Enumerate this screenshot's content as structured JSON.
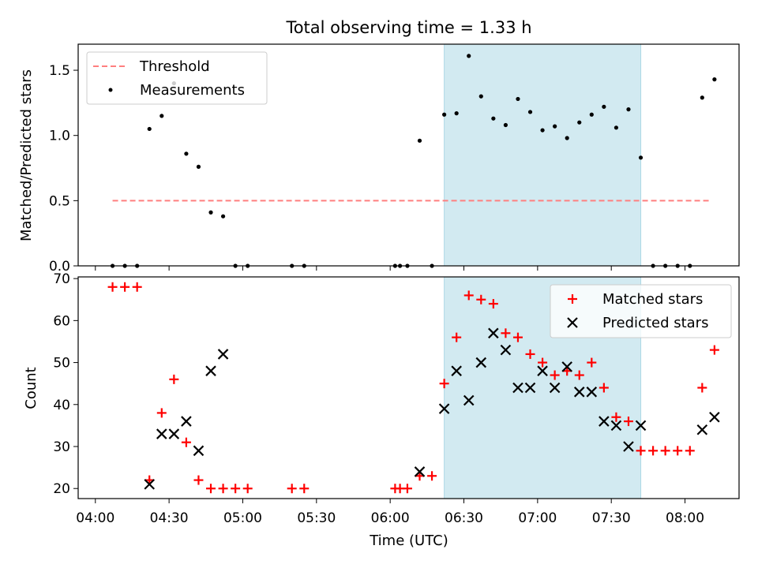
{
  "colors": {
    "highlight": "#add8e6",
    "threshold": "#ff7f7f",
    "measurements": "#000000",
    "matched": "#ff0000",
    "predicted": "#000000"
  },
  "chart_data": [
    {
      "type": "scatter",
      "title": "Total observing time = 1.33 h",
      "xlabel": "",
      "ylabel": "Matched/Predicted stars",
      "xlim": [
        "03:53",
        "08:22"
      ],
      "ylim": [
        0,
        1.7
      ],
      "yticks": [
        "0.0",
        "0.5",
        "1.0",
        "1.5"
      ],
      "highlight_span": [
        "06:22",
        "07:42"
      ],
      "legend": "top-left",
      "threshold": {
        "name": "Threshold",
        "x": [
          "04:07",
          "08:10"
        ],
        "y": 0.5
      },
      "series": [
        {
          "name": "Measurements",
          "x": [
            "04:07",
            "04:12",
            "04:17",
            "04:22",
            "04:27",
            "04:32",
            "04:37",
            "04:42",
            "04:47",
            "04:52",
            "04:57",
            "05:02",
            "05:20",
            "05:25",
            "06:02",
            "06:04",
            "06:07",
            "06:12",
            "06:17",
            "06:22",
            "06:27",
            "06:32",
            "06:37",
            "06:42",
            "06:47",
            "06:52",
            "06:57",
            "07:02",
            "07:07",
            "07:12",
            "07:17",
            "07:22",
            "07:27",
            "07:32",
            "07:37",
            "07:42",
            "07:47",
            "07:52",
            "07:57",
            "08:02",
            "08:07",
            "08:12"
          ],
          "y": [
            0,
            0,
            0,
            1.05,
            1.15,
            1.4,
            0.86,
            0.76,
            0.41,
            0.38,
            0,
            0,
            0,
            0,
            0,
            0,
            0,
            0.96,
            0,
            1.16,
            1.17,
            1.61,
            1.3,
            1.13,
            1.08,
            1.28,
            1.18,
            1.04,
            1.07,
            0.98,
            1.1,
            1.16,
            1.22,
            1.06,
            1.2,
            0.83,
            0,
            0,
            0,
            0,
            1.29,
            1.43
          ]
        }
      ]
    },
    {
      "type": "scatter",
      "title": "",
      "xlabel": "Time (UTC)",
      "ylabel": "Count",
      "xlim": [
        "03:53",
        "08:22"
      ],
      "ylim": [
        17.6,
        70.4
      ],
      "yticks": [
        "20",
        "30",
        "40",
        "50",
        "60",
        "70"
      ],
      "xticks": [
        "04:00",
        "04:30",
        "05:00",
        "05:30",
        "06:00",
        "06:30",
        "07:00",
        "07:30",
        "08:00"
      ],
      "highlight_span": [
        "06:22",
        "07:42"
      ],
      "legend": "top-right",
      "series": [
        {
          "name": "Matched stars",
          "x": [
            "04:07",
            "04:12",
            "04:17",
            "04:22",
            "04:27",
            "04:32",
            "04:37",
            "04:42",
            "04:47",
            "04:52",
            "04:57",
            "05:02",
            "05:20",
            "05:25",
            "06:02",
            "06:04",
            "06:07",
            "06:12",
            "06:17",
            "06:22",
            "06:27",
            "06:32",
            "06:37",
            "06:42",
            "06:47",
            "06:52",
            "06:57",
            "07:02",
            "07:07",
            "07:12",
            "07:17",
            "07:22",
            "07:27",
            "07:32",
            "07:37",
            "07:42",
            "07:47",
            "07:52",
            "07:57",
            "08:02",
            "08:07",
            "08:12"
          ],
          "y": [
            68,
            68,
            68,
            22,
            38,
            46,
            31,
            22,
            20,
            20,
            20,
            20,
            20,
            20,
            20,
            20,
            20,
            23,
            23,
            45,
            56,
            66,
            65,
            64,
            57,
            56,
            52,
            50,
            47,
            48,
            47,
            50,
            44,
            37,
            36,
            29,
            29,
            29,
            29,
            29,
            44,
            53
          ]
        },
        {
          "name": "Predicted stars",
          "x": [
            "04:22",
            "04:27",
            "04:32",
            "04:37",
            "04:42",
            "04:47",
            "04:52",
            "06:12",
            "06:22",
            "06:27",
            "06:32",
            "06:37",
            "06:42",
            "06:47",
            "06:52",
            "06:57",
            "07:02",
            "07:07",
            "07:12",
            "07:17",
            "07:22",
            "07:27",
            "07:32",
            "07:37",
            "07:42",
            "08:07",
            "08:12"
          ],
          "y": [
            21,
            33,
            33,
            36,
            29,
            48,
            52,
            24,
            39,
            48,
            41,
            50,
            57,
            53,
            44,
            44,
            48,
            44,
            49,
            43,
            43,
            36,
            35,
            30,
            35,
            34,
            37
          ]
        }
      ]
    }
  ]
}
